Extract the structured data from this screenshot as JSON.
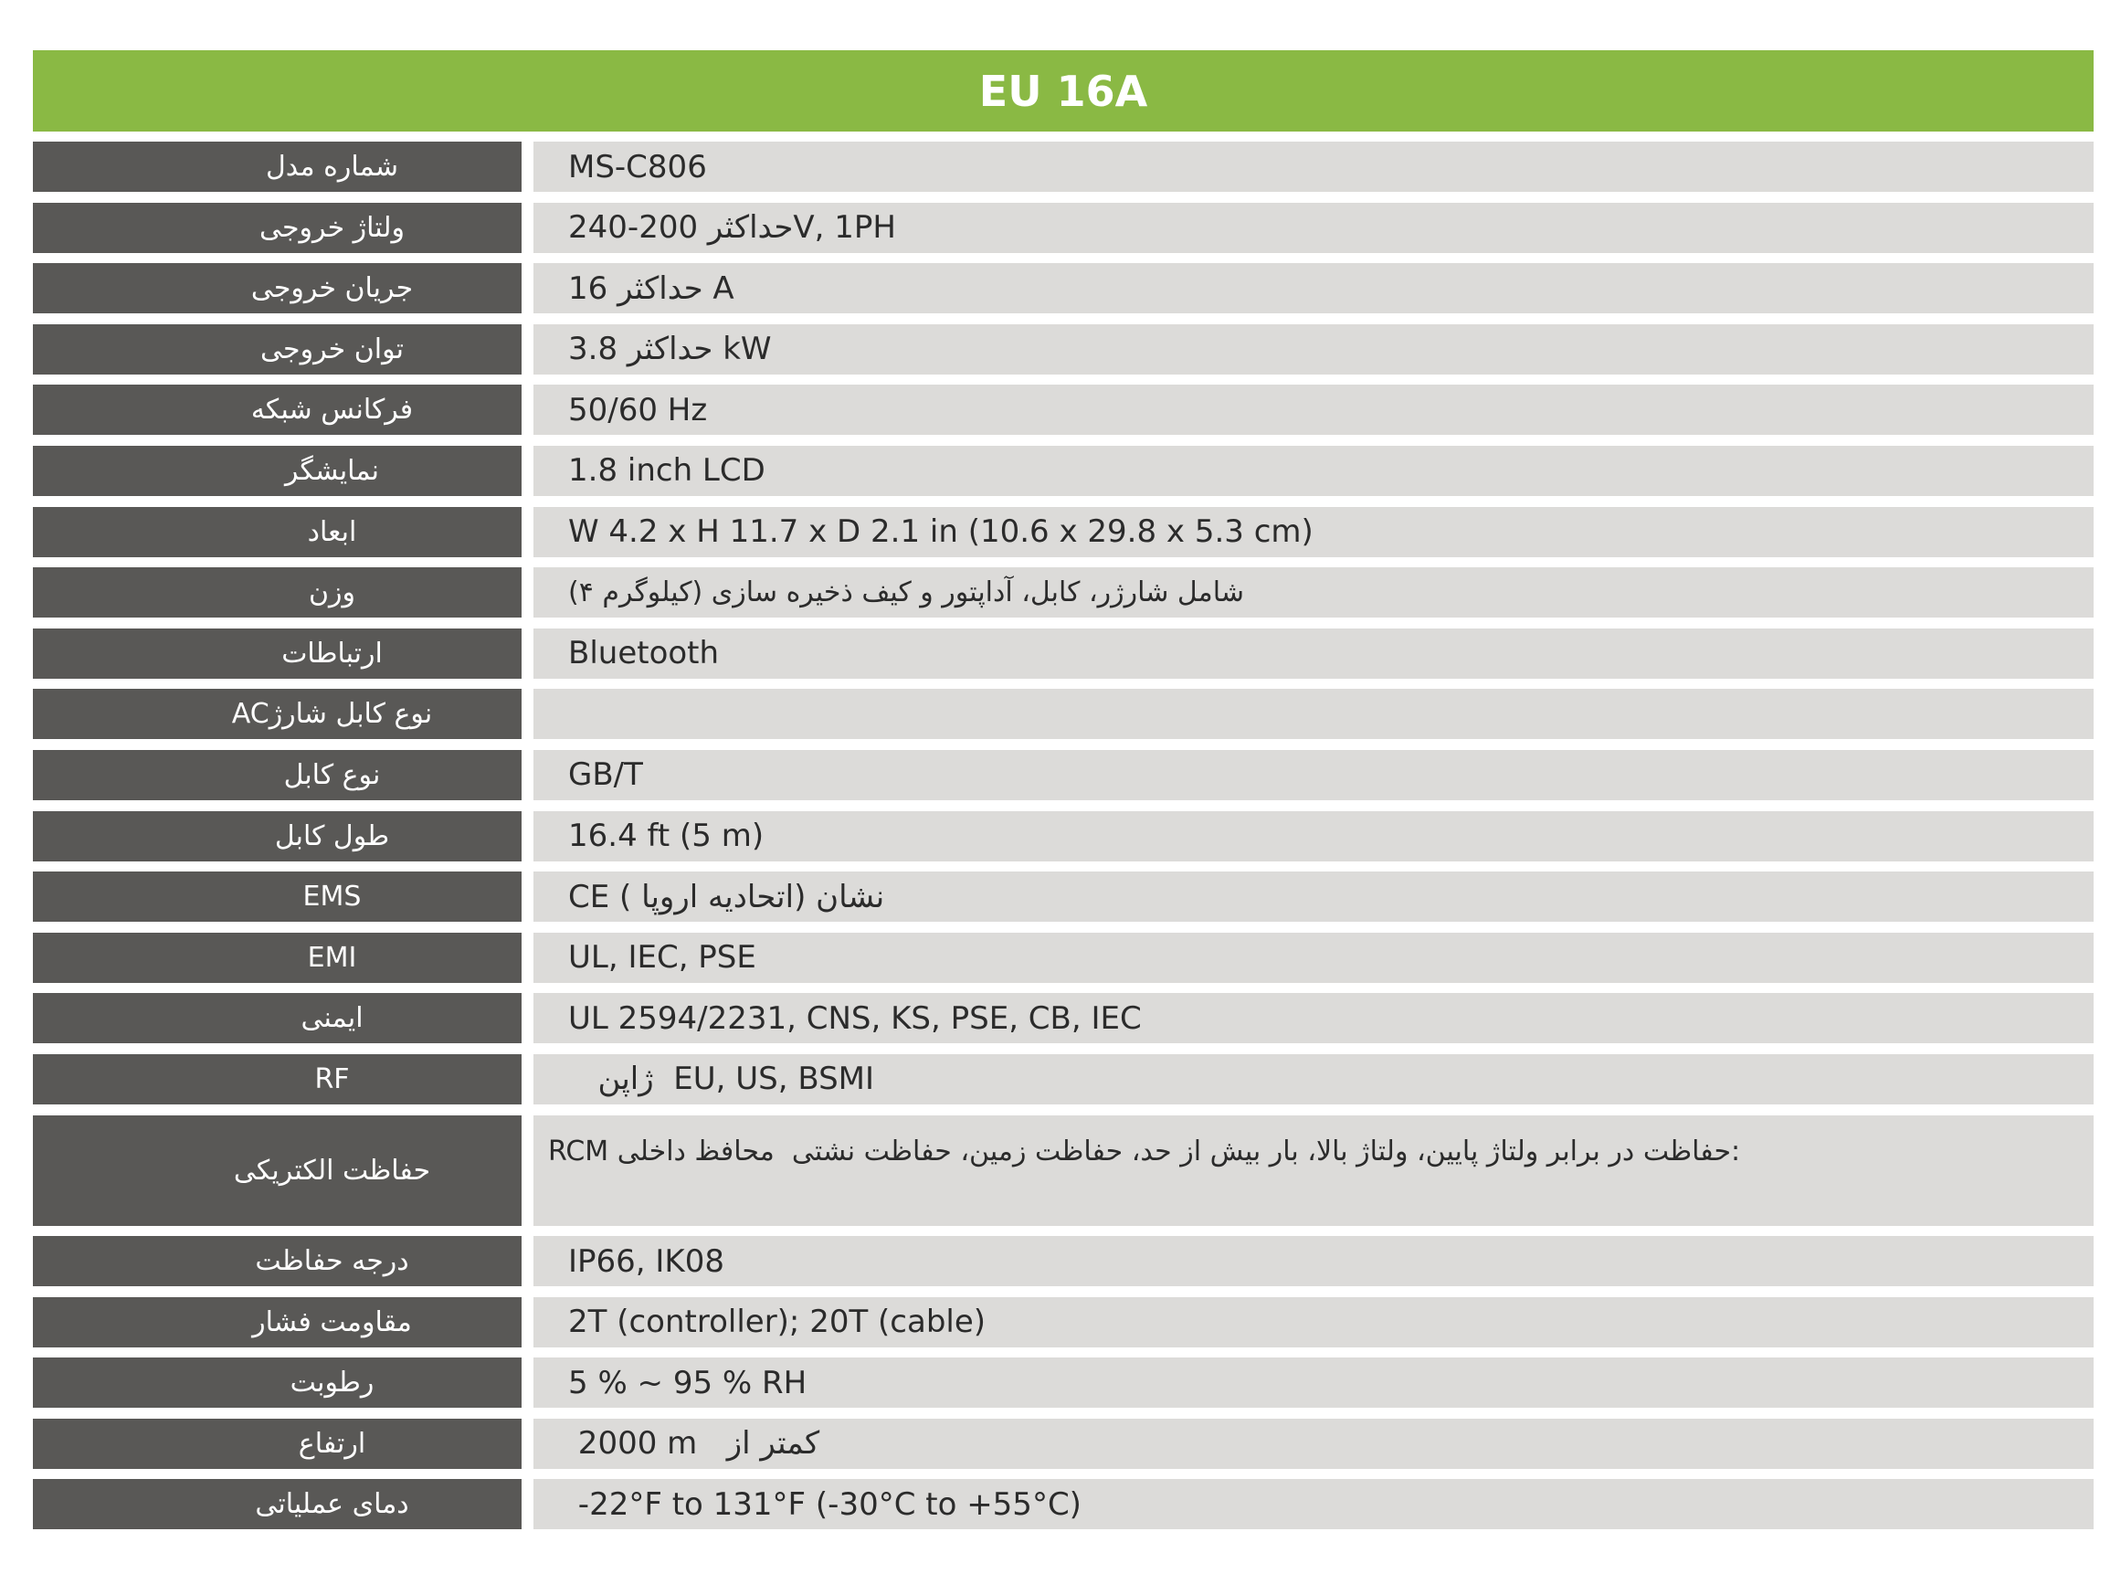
{
  "header": {
    "title": "EU 16A"
  },
  "colors": {
    "header_bg": "#8ab944",
    "label_bg": "#595856",
    "value_bg": "#dcdbd9"
  },
  "rows": [
    {
      "label": "شماره مدل",
      "value": "MS-C806"
    },
    {
      "label": "ولتاژ خروجی",
      "value": "حداکثر 200-240V, 1PH"
    },
    {
      "label": "جریان خروجی",
      "value": "حداکثر 16 A"
    },
    {
      "label": "توان خروجی",
      "value": "حداکثر 3.8 kW"
    },
    {
      "label": "فرکانس شبکه",
      "value": "50/60 Hz"
    },
    {
      "label": "نمایشگر",
      "value": "1.8 inch LCD"
    },
    {
      "label": "ابعاد",
      "value": "W 4.2 x H 11.7 x D 2.1 in (10.6 x 29.8 x 5.3 cm)"
    },
    {
      "label": "وزن",
      "value": "شامل شارژر، کابل، آداپتور و کیف ذخیره سازی (کیلوگرم ۴)",
      "rtl": true
    },
    {
      "label": "ارتباطات",
      "value": "Bluetooth"
    },
    {
      "label": "نوع کابل شارژAC",
      "value": ""
    },
    {
      "label": "نوع کابل",
      "value": "GB/T"
    },
    {
      "label": "طول کابل",
      "value": "16.4 ft (5 m)"
    },
    {
      "label": "EMS",
      "value": "CE نشان (اتحادیه اروپا )"
    },
    {
      "label": "EMI",
      "value": "UL, IEC, PSE"
    },
    {
      "label": "ایمنی",
      "value": "UL 2594/2231, CNS, KS, PSE, CB, IEC"
    },
    {
      "label": "RF",
      "value": "   ژاپن  EU, US, BSMI"
    },
    {
      "label": "حفاظت الکتریکی",
      "value": ":حفاظت در برابر ولتاژ پایین، ولتاژ بالا، بار بیش از حد، حفاظت زمین، حفاظت نشتی  محافظ داخلی RCM",
      "rtl": true,
      "tall": true
    },
    {
      "label": "درجه حفاظت",
      "value": "IP66, IK08"
    },
    {
      "label": "مقاومت فشار",
      "value": "2T (controller); 20T (cable)"
    },
    {
      "label": "رطوبت",
      "value": "5 % ~ 95 % RH"
    },
    {
      "label": "ارتفاع",
      "value": " 2000 m   کمتر از"
    },
    {
      "label": "دمای عملیاتی",
      "value": " -22°F to 131°F (-30°C to +55°C)"
    }
  ]
}
